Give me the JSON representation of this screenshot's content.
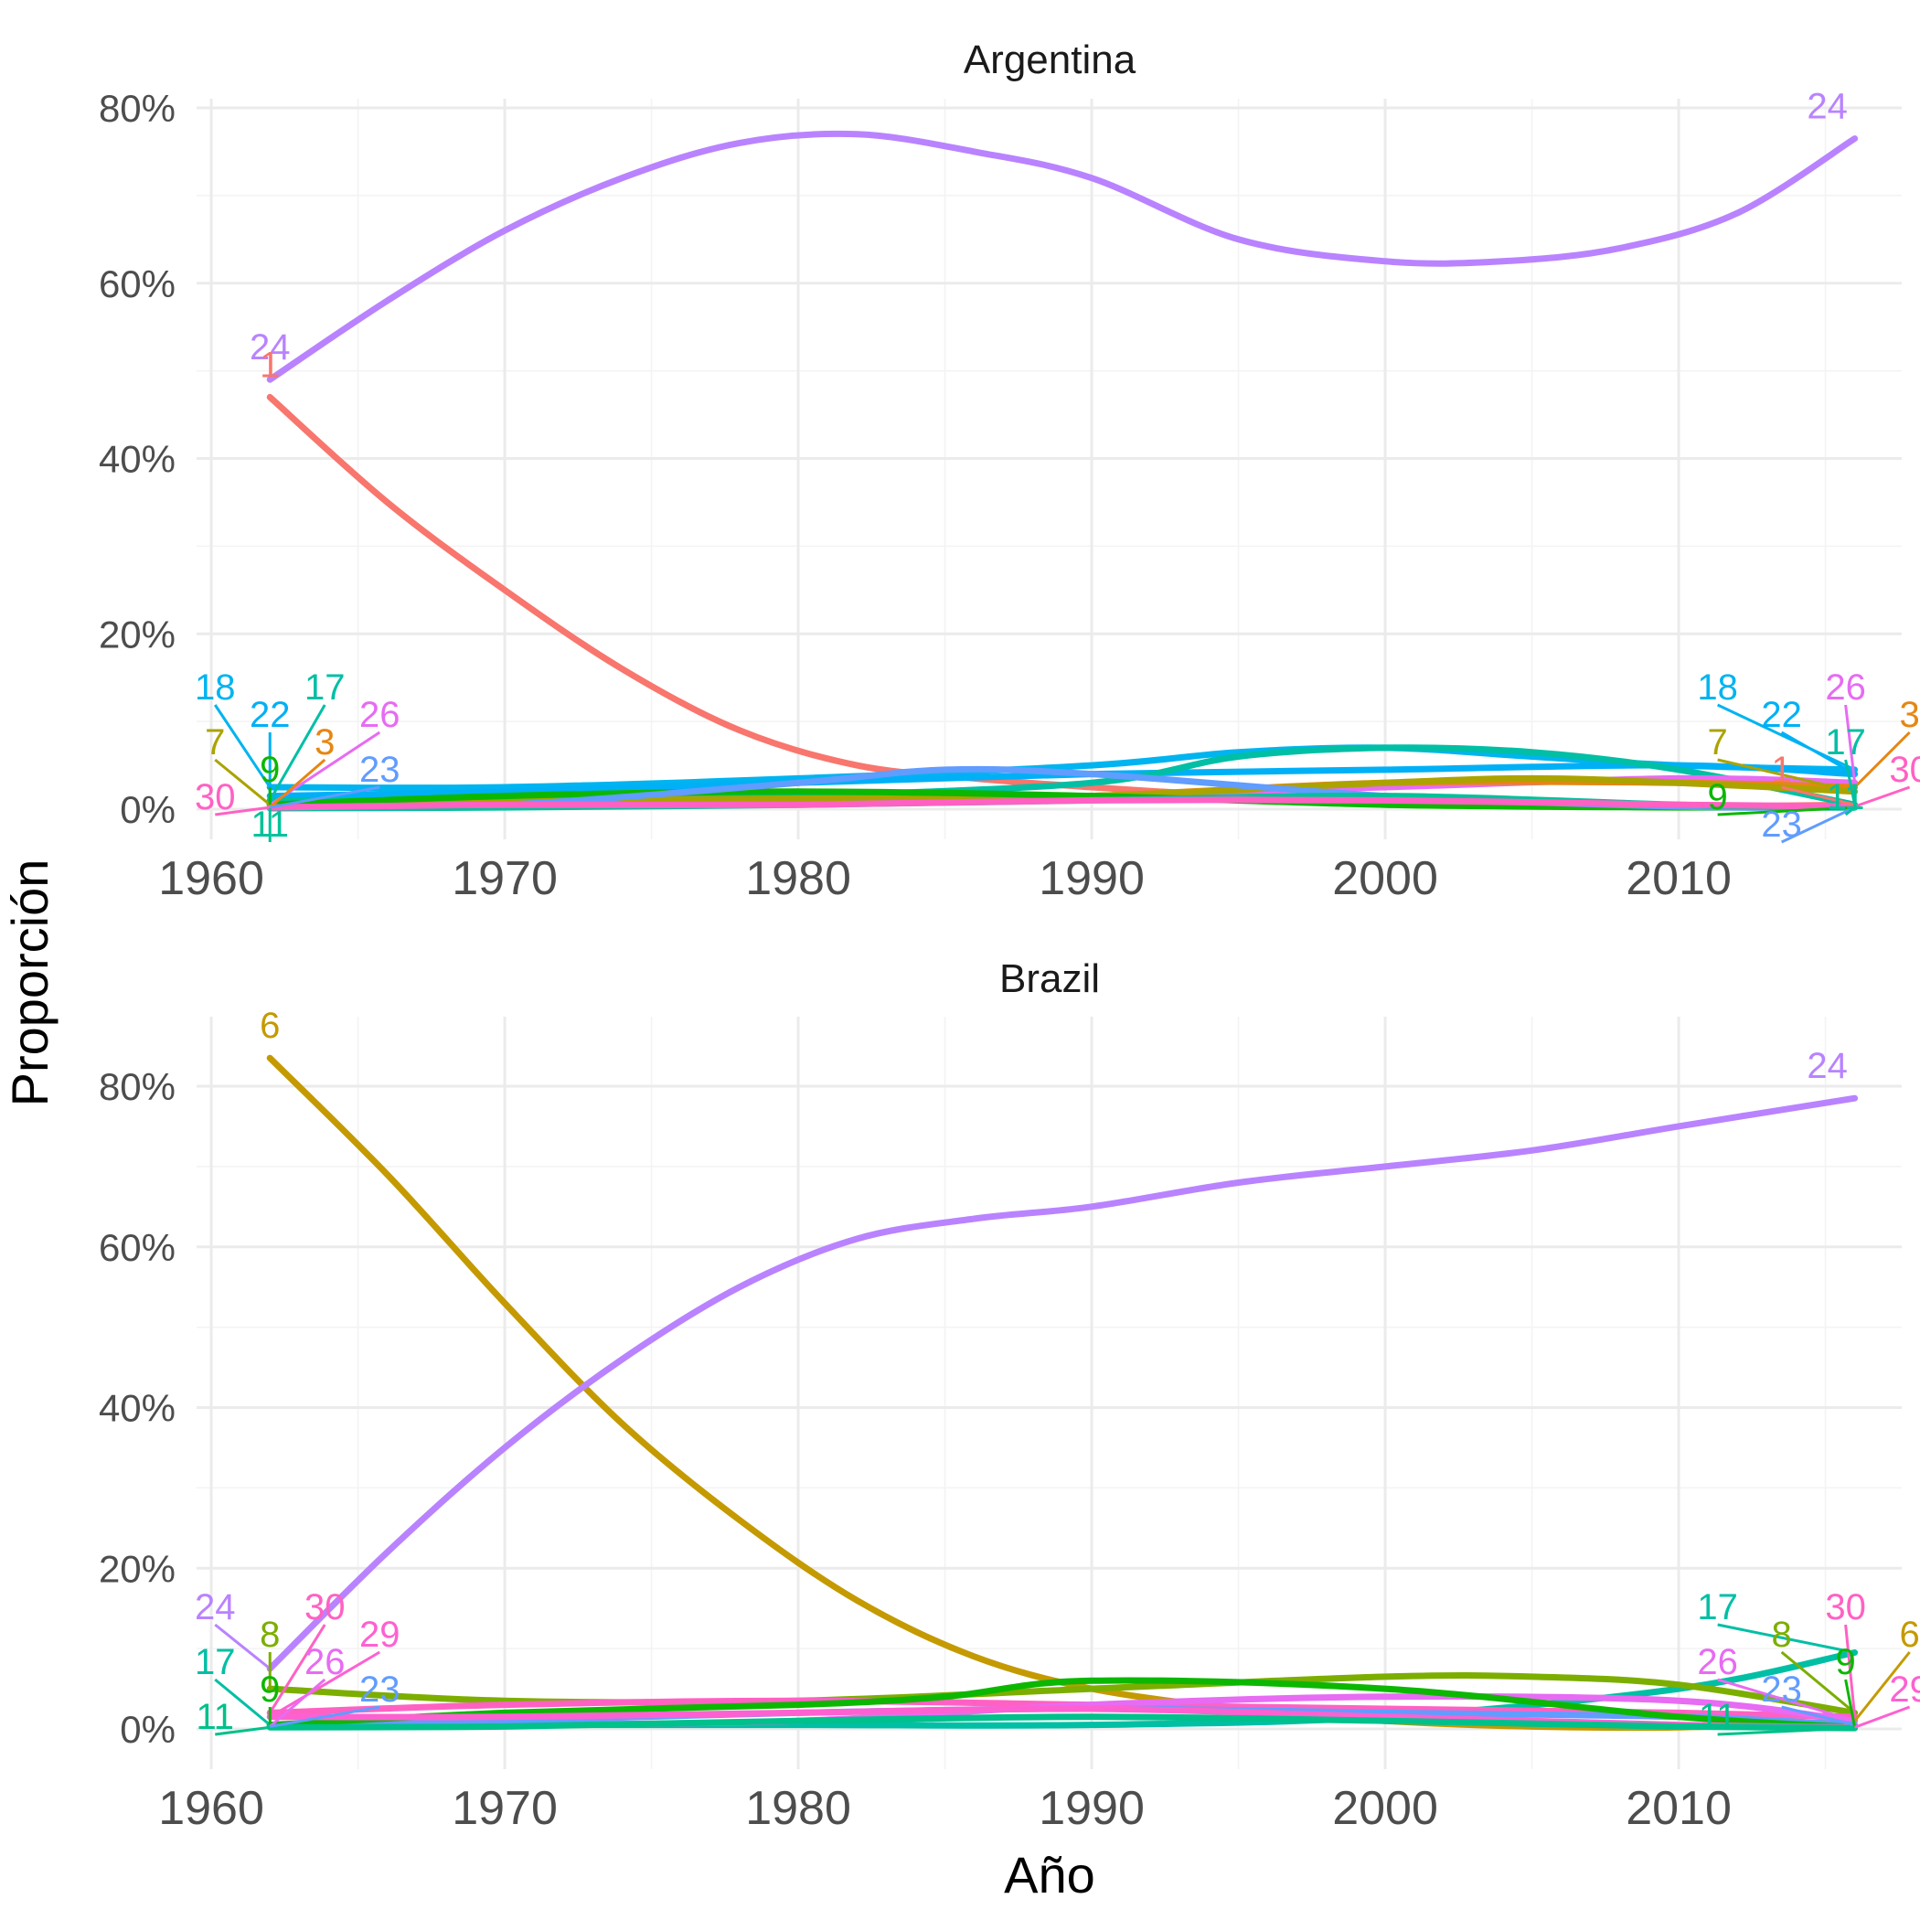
{
  "chart_data": {
    "type": "line",
    "xlabel": "Año",
    "ylabel": "Proporción",
    "x_ticks": [
      "1960",
      "1970",
      "1980",
      "1990",
      "2000",
      "2010"
    ],
    "panels": [
      {
        "title": "Argentina",
        "ylim": [
          0,
          0.8
        ],
        "y_ticks": [
          {
            "value": 0,
            "label": "0%"
          },
          {
            "value": 0.2,
            "label": "20%"
          },
          {
            "value": 0.4,
            "label": "40%"
          },
          {
            "value": 0.6,
            "label": "60%"
          },
          {
            "value": 0.8,
            "label": "80%"
          }
        ],
        "series": [
          {
            "name": "24",
            "color": "#b983ff",
            "x": [
              1962,
              1966,
              1970,
              1974,
              1978,
              1982,
              1986,
              1990,
              1995,
              2000,
              2004,
              2008,
              2012,
              2016
            ],
            "y": [
              0.49,
              0.58,
              0.66,
              0.72,
              0.76,
              0.77,
              0.75,
              0.72,
              0.65,
              0.625,
              0.625,
              0.64,
              0.68,
              0.765
            ],
            "label_start": "24",
            "label_end": "24"
          },
          {
            "name": "1",
            "color": "#f8766d",
            "x": [
              1962,
              1966,
              1970,
              1974,
              1978,
              1982,
              1986,
              1990,
              1995,
              2000,
              2005,
              2010,
              2016
            ],
            "y": [
              0.47,
              0.35,
              0.25,
              0.16,
              0.09,
              0.05,
              0.035,
              0.025,
              0.015,
              0.01,
              0.005,
              0.003,
              0.005
            ],
            "label_start": "1",
            "label_end": "1"
          },
          {
            "name": "18",
            "color": "#00b4ef",
            "x": [
              1962,
              1970,
              1980,
              1990,
              1995,
              2000,
              2005,
              2010,
              2016
            ],
            "y": [
              0.025,
              0.025,
              0.035,
              0.05,
              0.065,
              0.07,
              0.06,
              0.05,
              0.045
            ],
            "label_start": "18",
            "label_end": "18"
          },
          {
            "name": "22",
            "color": "#00b0f6",
            "x": [
              1962,
              1970,
              1980,
              1990,
              2000,
              2010,
              2016
            ],
            "y": [
              0.015,
              0.02,
              0.03,
              0.04,
              0.045,
              0.05,
              0.04
            ],
            "label_start": "22",
            "label_end": "22"
          },
          {
            "name": "17",
            "color": "#00bfa5",
            "x": [
              1962,
              1970,
              1980,
              1990,
              1995,
              2000,
              2005,
              2010,
              2016
            ],
            "y": [
              0.01,
              0.01,
              0.015,
              0.03,
              0.06,
              0.07,
              0.065,
              0.045,
              0.005
            ],
            "label_start": "17",
            "label_end": "17"
          },
          {
            "name": "26",
            "color": "#e76bf3",
            "x": [
              1962,
              1970,
              1980,
              1990,
              2000,
              2010,
              2016
            ],
            "y": [
              0.005,
              0.005,
              0.008,
              0.015,
              0.025,
              0.035,
              0.03
            ],
            "label_start": "26",
            "label_end": "26"
          },
          {
            "name": "3",
            "color": "#e68613",
            "x": [
              1962,
              1970,
              1980,
              1990,
              2000,
              2010,
              2016
            ],
            "y": [
              0.002,
              0.004,
              0.008,
              0.015,
              0.03,
              0.03,
              0.025
            ],
            "label_start": "3",
            "label_end": "3"
          },
          {
            "name": "7",
            "color": "#aba300",
            "x": [
              1962,
              1970,
              1980,
              1990,
              2000,
              2005,
              2010,
              2016
            ],
            "y": [
              0.005,
              0.01,
              0.012,
              0.015,
              0.03,
              0.035,
              0.03,
              0.02
            ],
            "label_start": "7",
            "label_end": "7"
          },
          {
            "name": "9",
            "color": "#0cb702",
            "x": [
              1962,
              1970,
              1980,
              1990,
              2000,
              2010,
              2016
            ],
            "y": [
              0.005,
              0.015,
              0.02,
              0.015,
              0.005,
              0.002,
              0.002
            ],
            "label_start": "9",
            "label_end": "9"
          },
          {
            "name": "23",
            "color": "#619cff",
            "x": [
              1962,
              1970,
              1980,
              1985,
              1990,
              2000,
              2010,
              2016
            ],
            "y": [
              0.002,
              0.005,
              0.03,
              0.045,
              0.04,
              0.015,
              0.003,
              0.002
            ],
            "label_start": "23",
            "label_end": "23"
          },
          {
            "name": "11",
            "color": "#00c19a",
            "x": [
              1962,
              1970,
              1980,
              1990,
              2000,
              2010,
              2016
            ],
            "y": [
              0.001,
              0.002,
              0.005,
              0.01,
              0.015,
              0.005,
              0.002
            ],
            "label_start": "11",
            "label_end": "11"
          },
          {
            "name": "30",
            "color": "#ff61c3",
            "x": [
              1962,
              1970,
              1980,
              1990,
              2000,
              2010,
              2016
            ],
            "y": [
              0.002,
              0.005,
              0.005,
              0.01,
              0.01,
              0.005,
              0.003
            ],
            "label_start": "30",
            "label_end": "30"
          }
        ]
      },
      {
        "title": "Brazil",
        "ylim": [
          0,
          0.85
        ],
        "y_ticks": [
          {
            "value": 0,
            "label": "0%"
          },
          {
            "value": 0.2,
            "label": "20%"
          },
          {
            "value": 0.4,
            "label": "40%"
          },
          {
            "value": 0.6,
            "label": "60%"
          },
          {
            "value": 0.8,
            "label": "80%"
          }
        ],
        "series": [
          {
            "name": "6",
            "color": "#c49a00",
            "x": [
              1962,
              1966,
              1970,
              1974,
              1978,
              1982,
              1986,
              1990,
              1995,
              2000,
              2005,
              2010,
              2016
            ],
            "y": [
              0.835,
              0.69,
              0.53,
              0.38,
              0.26,
              0.16,
              0.09,
              0.05,
              0.025,
              0.01,
              0.003,
              0.002,
              0.01
            ],
            "label_start": "6",
            "label_end": "6"
          },
          {
            "name": "24",
            "color": "#b983ff",
            "x": [
              1962,
              1966,
              1970,
              1974,
              1978,
              1982,
              1986,
              1990,
              1995,
              2000,
              2005,
              2010,
              2016
            ],
            "y": [
              0.075,
              0.22,
              0.35,
              0.46,
              0.55,
              0.61,
              0.635,
              0.65,
              0.68,
              0.7,
              0.72,
              0.75,
              0.785
            ],
            "label_start": "24",
            "label_end": "24"
          },
          {
            "name": "17",
            "color": "#00bfa5",
            "x": [
              1962,
              1970,
              1980,
              1990,
              2000,
              2010,
              2016
            ],
            "y": [
              0.005,
              0.005,
              0.005,
              0.005,
              0.015,
              0.05,
              0.095
            ],
            "label_start": "17",
            "label_end": "17"
          },
          {
            "name": "8",
            "color": "#7cae00",
            "x": [
              1962,
              1970,
              1980,
              1990,
              2000,
              2005,
              2010,
              2016
            ],
            "y": [
              0.05,
              0.035,
              0.035,
              0.05,
              0.065,
              0.065,
              0.055,
              0.02
            ],
            "label_start": "8",
            "label_end": "8"
          },
          {
            "name": "30",
            "color": "#ff61c3",
            "x": [
              1962,
              1970,
              1980,
              1990,
              2000,
              2010,
              2016
            ],
            "y": [
              0.02,
              0.03,
              0.035,
              0.03,
              0.025,
              0.02,
              0.015
            ],
            "label_start": "30",
            "label_end": "30"
          },
          {
            "name": "26",
            "color": "#e76bf3",
            "x": [
              1962,
              1970,
              1980,
              1990,
              2000,
              2010,
              2016
            ],
            "y": [
              0.003,
              0.005,
              0.01,
              0.03,
              0.04,
              0.035,
              0.01
            ],
            "label_start": "26",
            "label_end": "26"
          },
          {
            "name": "23",
            "color": "#619cff",
            "x": [
              1962,
              1970,
              1980,
              1990,
              2000,
              2010,
              2016
            ],
            "y": [
              0.003,
              0.01,
              0.02,
              0.025,
              0.02,
              0.015,
              0.005
            ],
            "label_start": "23",
            "label_end": "23"
          },
          {
            "name": "9",
            "color": "#0cb702",
            "x": [
              1962,
              1970,
              1980,
              1985,
              1990,
              2000,
              2010,
              2016
            ],
            "y": [
              0.005,
              0.02,
              0.03,
              0.04,
              0.06,
              0.05,
              0.015,
              0.002
            ],
            "label_start": "9",
            "label_end": "9"
          },
          {
            "name": "29",
            "color": "#fd61d1",
            "x": [
              1962,
              1970,
              1980,
              1990,
              2000,
              2010,
              2016
            ],
            "y": [
              0.015,
              0.015,
              0.02,
              0.025,
              0.015,
              0.005,
              0.002
            ],
            "label_start": "29",
            "label_end": "29"
          },
          {
            "name": "11",
            "color": "#00c08b",
            "x": [
              1962,
              1970,
              1980,
              1990,
              2000,
              2010,
              2016
            ],
            "y": [
              0.002,
              0.003,
              0.01,
              0.015,
              0.01,
              0.003,
              0.001
            ],
            "label_start": "11",
            "label_end": "11"
          }
        ]
      }
    ]
  }
}
